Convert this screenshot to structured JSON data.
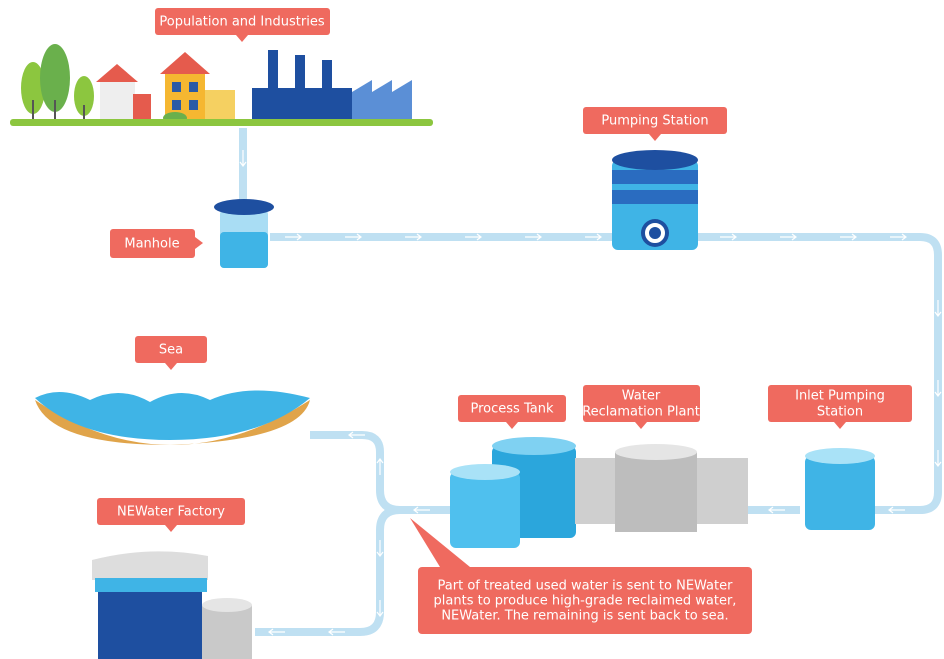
{
  "labels": {
    "population": [
      "Population and Industries"
    ],
    "pumping_station": [
      "Pumping Station"
    ],
    "manhole": [
      "Manhole"
    ],
    "sea": [
      "Sea"
    ],
    "process_tank": [
      "Process Tank"
    ],
    "reclamation_plant": [
      "Water",
      "Reclamation Plant"
    ],
    "inlet_pumping": [
      "Inlet Pumping",
      "Station"
    ],
    "newater_factory": [
      "NEWater Factory"
    ],
    "note": [
      "Part of treated used water is sent to NEWater",
      "plants to produce high-grade reclaimed water,",
      "NEWater. The remaining is sent back to sea."
    ]
  }
}
